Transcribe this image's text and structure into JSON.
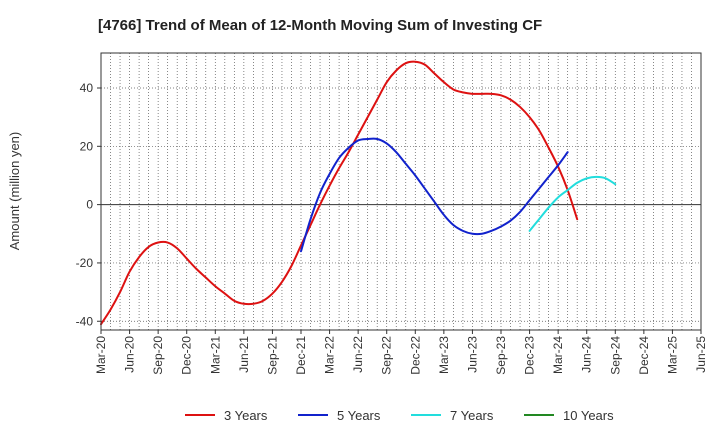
{
  "chart_data": {
    "type": "line",
    "title": "[4766]  Trend of Mean of 12-Month Moving Sum of Investing CF",
    "xlabel": "",
    "ylabel": "Amount (million yen)",
    "ylim": [
      -43,
      52
    ],
    "yticks": [
      -40,
      -20,
      0,
      20,
      40
    ],
    "ytick_labels": [
      "-40",
      "-20",
      "0",
      "20",
      "40"
    ],
    "x_start": "Mar-20",
    "x_end": "Jun-25",
    "x_months": 63,
    "xticks": [
      "Mar-20",
      "Jun-20",
      "Sep-20",
      "Dec-20",
      "Mar-21",
      "Jun-21",
      "Sep-21",
      "Dec-21",
      "Mar-22",
      "Jun-22",
      "Sep-22",
      "Dec-22",
      "Mar-23",
      "Jun-23",
      "Sep-23",
      "Dec-23",
      "Mar-24",
      "Jun-24",
      "Sep-24",
      "Dec-24",
      "Mar-25",
      "Jun-25"
    ],
    "grid": true,
    "legend_position": "bottom",
    "series": [
      {
        "name": "3 Years",
        "color": "#dd1111",
        "start_month_index": 0,
        "values": [
          -41,
          -36,
          -30,
          -23,
          -18,
          -14.5,
          -13,
          -13,
          -15,
          -18.5,
          -22,
          -25,
          -28,
          -30.5,
          -33,
          -34,
          -34,
          -33,
          -30.5,
          -26.5,
          -21,
          -14,
          -7,
          0,
          6.5,
          12.5,
          18,
          24,
          30,
          36,
          42,
          46,
          48.5,
          49,
          48,
          45,
          42,
          39.5,
          38.5,
          38,
          38,
          38,
          37.5,
          36,
          33.5,
          30,
          25.5,
          19.5,
          13,
          5,
          -5
        ]
      },
      {
        "name": "5 Years",
        "color": "#1122cc",
        "start_month_index": 21,
        "values": [
          -16,
          -5,
          4,
          10.5,
          16,
          19.5,
          22,
          22.5,
          22.5,
          21,
          18,
          14,
          10,
          5.5,
          1,
          -3.5,
          -7,
          -9,
          -10,
          -10,
          -9,
          -7.5,
          -5.5,
          -2.5,
          1.5,
          5.5,
          9.5,
          13.5,
          18
        ]
      },
      {
        "name": "7 Years",
        "color": "#22dddd",
        "start_month_index": 45,
        "values": [
          -9,
          -5,
          -1,
          2.5,
          5,
          7.5,
          9,
          9.5,
          9,
          7
        ]
      },
      {
        "name": "10 Years",
        "color": "#228822",
        "start_month_index": 0,
        "values": []
      }
    ]
  }
}
